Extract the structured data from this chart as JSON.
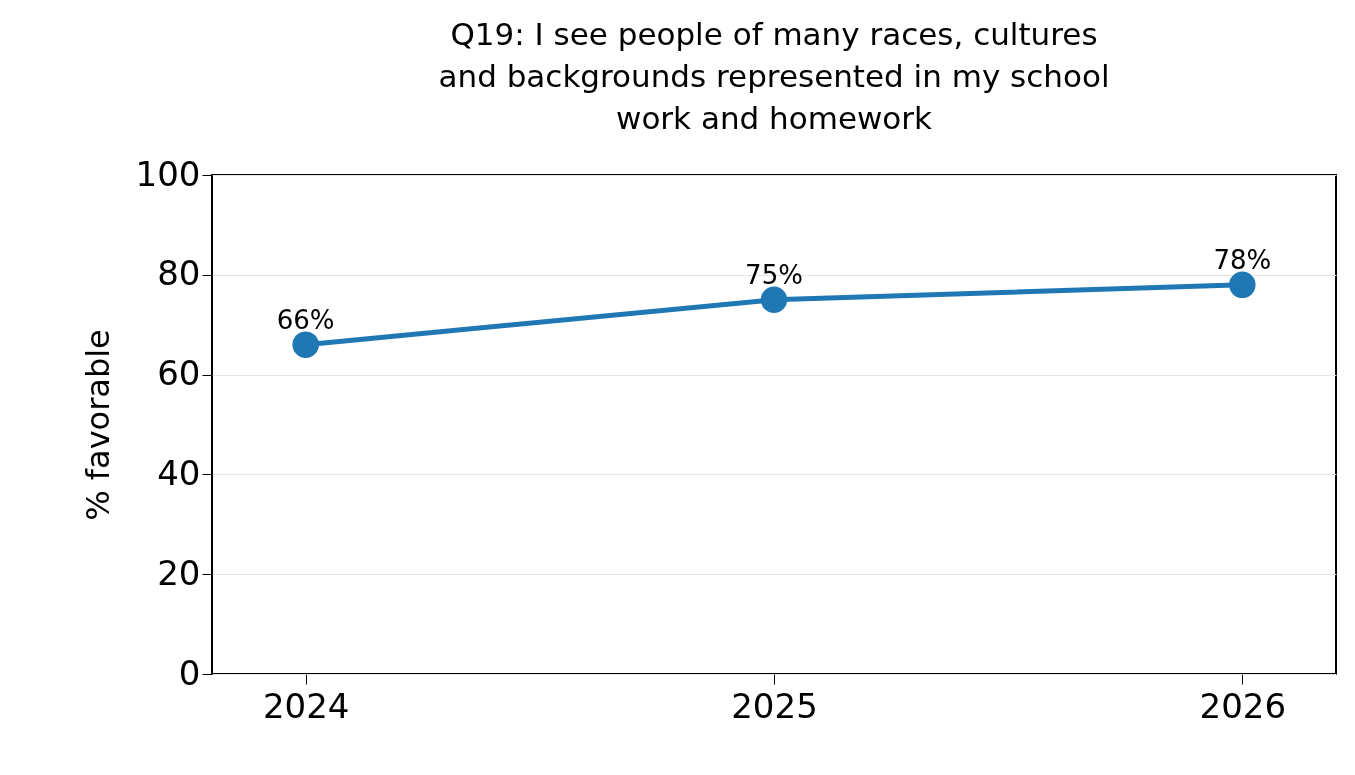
{
  "chart_data": {
    "type": "line",
    "title": "Q19: I see people of many races, cultures and backgrounds represented in my school work and homework",
    "ylabel": "% favorable",
    "categories": [
      "2024",
      "2025",
      "2026"
    ],
    "series": [
      {
        "color": "#1f77b4",
        "values": [
          66,
          75,
          78
        ],
        "value_labels": [
          "66%",
          "75%",
          "78%"
        ]
      }
    ],
    "ylim": [
      0,
      100
    ],
    "yticks": [
      0,
      20,
      40,
      60,
      80,
      100
    ],
    "grid": "y",
    "marker": "circle",
    "line_style": "solid"
  }
}
